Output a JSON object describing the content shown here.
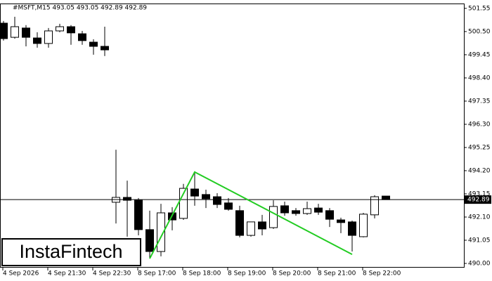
{
  "chart_data": {
    "type": "candlestick",
    "title": "#MSFT,M15  493.05 493.05 492.89 492.89",
    "watermark": "InstaFintech",
    "categories": [
      "4 Sep 2026",
      null,
      null,
      null,
      "4 Sep 21:30",
      null,
      null,
      null,
      "4 Sep 22:30",
      null,
      null,
      null,
      "8 Sep 17:00",
      null,
      null,
      null,
      "8 Sep 18:00",
      null,
      null,
      null,
      "8 Sep 19:00",
      null,
      null,
      null,
      "8 Sep 20:00",
      null,
      null,
      null,
      "8 Sep 21:00",
      null,
      null,
      null,
      "8 Sep 22:00",
      null,
      null
    ],
    "open": [
      500.88,
      500.24,
      500.66,
      500.21,
      499.96,
      500.53,
      500.72,
      500.4,
      500.02,
      499.83,
      492.77,
      492.99,
      492.86,
      491.53,
      490.54,
      492.29,
      492.04,
      493.37,
      493.12,
      493.02,
      492.74,
      492.39,
      491.27,
      491.88,
      491.62,
      492.61,
      492.39,
      492.26,
      492.51,
      492.39,
      491.97,
      491.88,
      491.21,
      492.2,
      493.05
    ],
    "high": [
      500.98,
      501.17,
      500.79,
      500.47,
      500.66,
      500.85,
      500.79,
      500.53,
      500.15,
      500.72,
      495.15,
      493.75,
      492.96,
      492.39,
      492.7,
      492.55,
      493.6,
      494.14,
      493.34,
      493.18,
      492.96,
      492.61,
      491.88,
      492.2,
      492.86,
      492.8,
      492.51,
      492.8,
      492.7,
      492.51,
      492.07,
      491.94,
      492.29,
      493.09,
      493.05
    ],
    "low": [
      500.09,
      500.18,
      499.83,
      499.77,
      499.77,
      500.47,
      499.9,
      499.9,
      499.45,
      499.39,
      491.81,
      491.21,
      491.27,
      490.22,
      490.32,
      491.5,
      491.97,
      492.61,
      492.51,
      492.51,
      492.39,
      491.18,
      491.21,
      491.27,
      491.56,
      492.16,
      492.16,
      492.2,
      492.2,
      491.65,
      491.37,
      490.54,
      491.18,
      492.04,
      492.89
    ],
    "close": [
      500.18,
      500.72,
      500.24,
      499.96,
      500.53,
      500.72,
      500.44,
      500.09,
      499.83,
      499.67,
      492.99,
      492.86,
      491.53,
      490.54,
      492.29,
      491.97,
      493.4,
      493.05,
      492.93,
      492.67,
      492.45,
      491.27,
      491.88,
      491.56,
      492.58,
      492.29,
      492.26,
      492.48,
      492.32,
      492.0,
      491.85,
      491.27,
      492.23,
      493.02,
      492.89
    ],
    "ylim": [
      489.84,
      501.77
    ],
    "yticks": [
      {
        "value": 490.0,
        "label": "490.00"
      },
      {
        "value": 491.05,
        "label": "491.05"
      },
      {
        "value": 492.1,
        "label": "492.10"
      },
      {
        "value": 493.15,
        "label": "493.15"
      },
      {
        "value": 494.2,
        "label": "494.20"
      },
      {
        "value": 495.25,
        "label": "495.25"
      },
      {
        "value": 496.3,
        "label": "496.30"
      },
      {
        "value": 497.35,
        "label": "497.35"
      },
      {
        "value": 498.4,
        "label": "498.40"
      },
      {
        "value": 499.45,
        "label": "499.45"
      },
      {
        "value": 500.5,
        "label": "500.50"
      },
      {
        "value": 501.55,
        "label": "501.55"
      }
    ],
    "last_price": {
      "value": 492.89,
      "label": "492.89"
    },
    "pattern": {
      "color": "#22cc22",
      "points": [
        {
          "index": 13,
          "value": 490.22
        },
        {
          "index": 17,
          "value": 494.14
        },
        {
          "index": 31,
          "value": 490.41
        }
      ]
    }
  }
}
